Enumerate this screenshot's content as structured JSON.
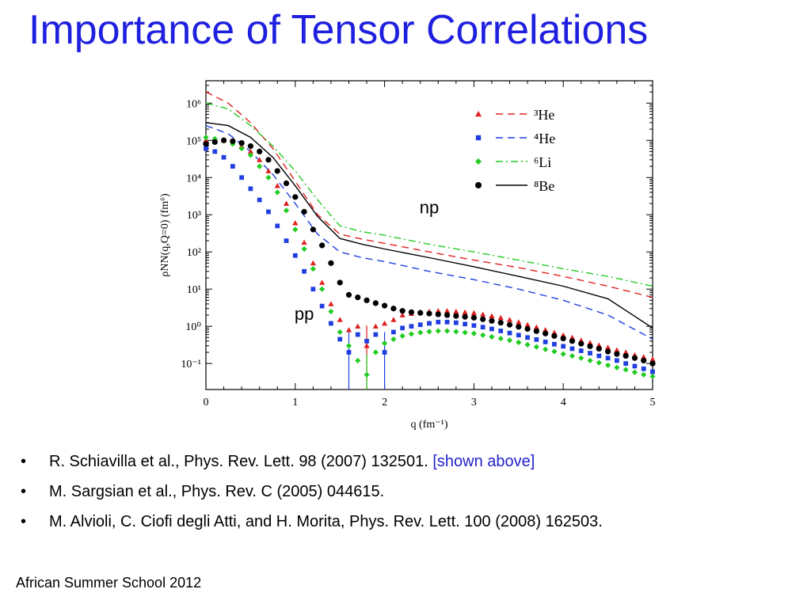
{
  "slide": {
    "title": "Importance of Tensor Correlations",
    "references": [
      {
        "text": "R. Schiavilla et al., Phys. Rev. Lett. 98 (2007) 132501. ",
        "link": "[shown above]"
      },
      {
        "text": "M. Sargsian et al., Phys. Rev. C (2005) 044615.",
        "link": ""
      },
      {
        "text": "M. Alvioli, C. Ciofi degli Atti, and H. Morita, Phys. Rev. Lett. 100 (2008) 162503.",
        "link": ""
      }
    ],
    "bullet_char": "•",
    "footer": "African Summer School 2012",
    "colors": {
      "title": "#1f1fe0",
      "link": "#2222cc"
    }
  },
  "chart_data": {
    "type": "scatter",
    "xlabel": "q (fm⁻¹)",
    "ylabel": "ρNN(q,Q=0) (fm⁶)",
    "xlim": [
      0,
      5
    ],
    "ylim": [
      0.02,
      4000000
    ],
    "yscale": "log",
    "grid": false,
    "legend_position": "top-right",
    "x_ticks": [
      "0",
      "1",
      "2",
      "3",
      "4",
      "5"
    ],
    "y_ticks": [
      {
        "value": 0.1,
        "label": "10⁻¹"
      },
      {
        "value": 1,
        "label": "10⁰"
      },
      {
        "value": 10,
        "label": "10¹"
      },
      {
        "value": 100,
        "label": "10²"
      },
      {
        "value": 1000,
        "label": "10³"
      },
      {
        "value": 10000,
        "label": "10⁴"
      },
      {
        "value": 100000,
        "label": "10⁵"
      },
      {
        "value": 1000000,
        "label": "10⁶"
      }
    ],
    "annotations": [
      {
        "text": "np",
        "x": 2.5,
        "y": 1100
      },
      {
        "text": "pp",
        "x": 1.1,
        "y": 1.5
      }
    ],
    "series": [
      {
        "name": "³He",
        "color": "#e02020",
        "marker": "triangle",
        "line_style": "dash",
        "np_curve": {
          "x": [
            0,
            0.25,
            0.5,
            0.75,
            1.0,
            1.25,
            1.5,
            1.75,
            2.0,
            2.5,
            3.0,
            3.5,
            4.0,
            4.5,
            5.0
          ],
          "y": [
            2000000,
            1000000,
            300000,
            60000,
            8000,
            1000,
            300,
            220,
            170,
            100,
            60,
            38,
            22,
            12,
            6
          ]
        },
        "pp_points": {
          "x": [
            0.0,
            0.1,
            0.2,
            0.3,
            0.4,
            0.5,
            0.6,
            0.7,
            0.8,
            0.9,
            1.0,
            1.1,
            1.2,
            1.3,
            1.4,
            1.5,
            1.6,
            1.7,
            1.8,
            1.9,
            2.0,
            2.1,
            2.2,
            2.3,
            2.4,
            2.5,
            2.6,
            2.7,
            2.8,
            2.9,
            3.0,
            3.1,
            3.2,
            3.3,
            3.4,
            3.5,
            3.6,
            3.7,
            3.8,
            3.9,
            4.0,
            4.1,
            4.2,
            4.3,
            4.4,
            4.5,
            4.6,
            4.7,
            4.8,
            4.9,
            5.0
          ],
          "y": [
            100000,
            110000,
            100000,
            90000,
            70000,
            50000,
            30000,
            15000,
            6000,
            2000,
            600,
            180,
            50,
            15,
            4,
            1.5,
            0.8,
            1.0,
            0.3,
            1.0,
            1.2,
            1.5,
            2.0,
            2.2,
            2.4,
            2.5,
            2.6,
            2.6,
            2.5,
            2.4,
            2.3,
            2.1,
            1.9,
            1.7,
            1.5,
            1.3,
            1.1,
            0.95,
            0.8,
            0.68,
            0.58,
            0.5,
            0.42,
            0.36,
            0.31,
            0.27,
            0.23,
            0.2,
            0.17,
            0.15,
            0.13
          ]
        }
      },
      {
        "name": "⁴He",
        "color": "#1f3ee0",
        "marker": "square",
        "line_style": "dash",
        "np_curve": {
          "x": [
            0,
            0.25,
            0.5,
            0.75,
            1.0,
            1.25,
            1.5,
            1.75,
            2.0,
            2.5,
            3.0,
            3.5,
            4.0,
            4.5,
            5.0
          ],
          "y": [
            250000,
            150000,
            50000,
            12000,
            2000,
            300,
            100,
            70,
            55,
            30,
            18,
            10,
            5,
            2,
            0.45
          ]
        },
        "pp_points": {
          "x": [
            0.0,
            0.1,
            0.2,
            0.3,
            0.4,
            0.5,
            0.6,
            0.7,
            0.8,
            0.9,
            1.0,
            1.1,
            1.2,
            1.3,
            1.4,
            1.5,
            1.6,
            1.7,
            1.8,
            1.9,
            2.0,
            2.1,
            2.2,
            2.3,
            2.4,
            2.5,
            2.6,
            2.7,
            2.8,
            2.9,
            3.0,
            3.1,
            3.2,
            3.3,
            3.4,
            3.5,
            3.6,
            3.7,
            3.8,
            3.9,
            4.0,
            4.1,
            4.2,
            4.3,
            4.4,
            4.5,
            4.6,
            4.7,
            4.8,
            4.9,
            5.0
          ],
          "y": [
            60000,
            50000,
            35000,
            20000,
            10000,
            5000,
            2500,
            1200,
            500,
            200,
            80,
            30,
            10,
            3.5,
            1.2,
            0.45,
            0.2,
            0.6,
            0.4,
            0.6,
            0.2,
            0.7,
            0.9,
            1.0,
            1.1,
            1.2,
            1.3,
            1.3,
            1.25,
            1.15,
            1.05,
            0.95,
            0.85,
            0.75,
            0.66,
            0.58,
            0.5,
            0.44,
            0.38,
            0.33,
            0.29,
            0.25,
            0.22,
            0.19,
            0.16,
            0.14,
            0.12,
            0.1,
            0.085,
            0.072,
            0.06
          ]
        }
      },
      {
        "name": "⁶Li",
        "color": "#22cc22",
        "marker": "diamond",
        "line_style": "dashdot",
        "np_curve": {
          "x": [
            0,
            0.25,
            0.5,
            0.75,
            1.0,
            1.25,
            1.5,
            1.75,
            2.0,
            2.5,
            3.0,
            3.5,
            4.0,
            4.5,
            5.0
          ],
          "y": [
            1000000,
            700000,
            250000,
            70000,
            15000,
            2500,
            500,
            350,
            280,
            160,
            100,
            60,
            35,
            22,
            12
          ]
        },
        "pp_points": {
          "x": [
            0.0,
            0.1,
            0.2,
            0.3,
            0.4,
            0.5,
            0.6,
            0.7,
            0.8,
            0.9,
            1.0,
            1.1,
            1.2,
            1.3,
            1.4,
            1.5,
            1.6,
            1.7,
            1.8,
            1.9,
            2.0,
            2.1,
            2.2,
            2.3,
            2.4,
            2.5,
            2.6,
            2.7,
            2.8,
            2.9,
            3.0,
            3.1,
            3.2,
            3.3,
            3.4,
            3.5,
            3.6,
            3.7,
            3.8,
            3.9,
            4.0,
            4.1,
            4.2,
            4.3,
            4.4,
            4.5,
            4.6,
            4.7,
            4.8,
            4.9,
            5.0
          ],
          "y": [
            120000,
            110000,
            100000,
            80000,
            60000,
            40000,
            20000,
            10000,
            4000,
            1300,
            400,
            120,
            35,
            10,
            2.5,
            0.7,
            0.3,
            0.12,
            0.05,
            0.2,
            0.35,
            0.45,
            0.55,
            0.62,
            0.68,
            0.72,
            0.75,
            0.75,
            0.72,
            0.68,
            0.64,
            0.58,
            0.52,
            0.47,
            0.42,
            0.37,
            0.32,
            0.28,
            0.24,
            0.21,
            0.18,
            0.16,
            0.14,
            0.12,
            0.105,
            0.09,
            0.078,
            0.068,
            0.058,
            0.05,
            0.045
          ]
        }
      },
      {
        "name": "⁸Be",
        "color": "#000000",
        "marker": "circle",
        "line_style": "solid",
        "np_curve": {
          "x": [
            0,
            0.25,
            0.5,
            0.75,
            1.0,
            1.25,
            1.5,
            1.75,
            2.0,
            2.5,
            3.0,
            3.5,
            4.0,
            4.5,
            5.0
          ],
          "y": [
            300000,
            250000,
            120000,
            35000,
            6000,
            900,
            230,
            160,
            120,
            70,
            40,
            22,
            12,
            5.5,
            0.9
          ]
        },
        "pp_points": {
          "x": [
            0.0,
            0.1,
            0.2,
            0.3,
            0.4,
            0.5,
            0.6,
            0.7,
            0.8,
            0.9,
            1.0,
            1.1,
            1.2,
            1.3,
            1.4,
            1.5,
            1.6,
            1.7,
            1.8,
            1.9,
            2.0,
            2.1,
            2.2,
            2.3,
            2.4,
            2.5,
            2.6,
            2.7,
            2.8,
            2.9,
            3.0,
            3.1,
            3.2,
            3.3,
            3.4,
            3.5,
            3.6,
            3.7,
            3.8,
            3.9,
            4.0,
            4.1,
            4.2,
            4.3,
            4.4,
            4.5,
            4.6,
            4.7,
            4.8,
            4.9,
            5.0
          ],
          "y": [
            80000,
            90000,
            100000,
            95000,
            85000,
            70000,
            50000,
            30000,
            15000,
            7000,
            3000,
            1200,
            400,
            150,
            50,
            15,
            7,
            6,
            5,
            4.2,
            3.6,
            3.0,
            2.6,
            2.4,
            2.3,
            2.2,
            2.1,
            2.0,
            1.9,
            1.8,
            1.7,
            1.55,
            1.4,
            1.25,
            1.1,
            0.97,
            0.85,
            0.74,
            0.64,
            0.55,
            0.47,
            0.4,
            0.34,
            0.29,
            0.25,
            0.21,
            0.18,
            0.16,
            0.14,
            0.12,
            0.1
          ]
        }
      }
    ]
  }
}
